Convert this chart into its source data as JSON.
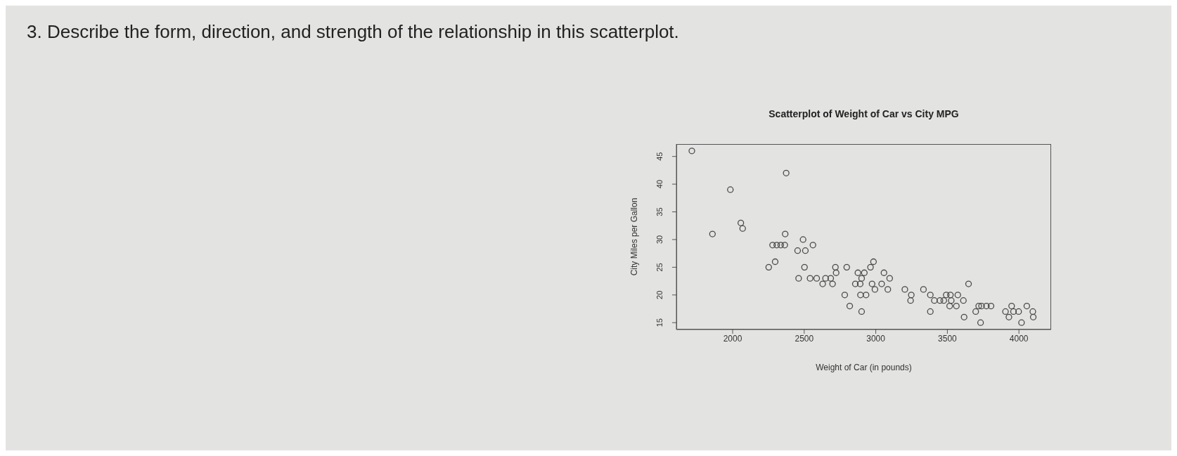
{
  "chart_data": {
    "type": "scatter",
    "title": "Scatterplot of Weight of Car vs City MPG",
    "xlabel": "Weight of Car (in pounds)",
    "ylabel": "City Miles per Gallon",
    "annotations": [
      "3. Describe the form, direction, and strength of the relationship in this scatterplot."
    ],
    "x": [
      1715,
      1859,
      1984,
      2057,
      2070,
      2252,
      2297,
      2279,
      2308,
      2336,
      2364,
      2367,
      2374,
      2454,
      2461,
      2492,
      2508,
      2502,
      2541,
      2561,
      2587,
      2629,
      2649,
      2685,
      2698,
      2718,
      2723,
      2783,
      2797,
      2818,
      2857,
      2875,
      2920,
      2901,
      2891,
      2893,
      2932,
      2901,
      2963,
      2984,
      2974,
      2994,
      3057,
      3041,
      3097,
      3084,
      3203,
      3248,
      3243,
      3333,
      3381,
      3381,
      3409,
      3448,
      3475,
      3492,
      3521,
      3527,
      3516,
      3563,
      3573,
      3612,
      3617,
      3648,
      3698,
      3719,
      3739,
      3732,
      3773,
      3805,
      3906,
      3949,
      3930,
      3962,
      3998,
      4018,
      4055,
      4097,
      4100
    ],
    "values": [
      46,
      31,
      39,
      33,
      32,
      25,
      26,
      29,
      29,
      29,
      29,
      31,
      42,
      28,
      23,
      30,
      28,
      25,
      23,
      29,
      23,
      22,
      23,
      23,
      22,
      25,
      24,
      20,
      25,
      18,
      22,
      24,
      24,
      23,
      22,
      20,
      20,
      17,
      25,
      26,
      22,
      21,
      24,
      22,
      23,
      21,
      21,
      20,
      19,
      21,
      20,
      17,
      19,
      19,
      19,
      20,
      20,
      19,
      18,
      18,
      20,
      19,
      16,
      22,
      17,
      18,
      18,
      15,
      18,
      18,
      17,
      18,
      16,
      17,
      17,
      15,
      18,
      17,
      16
    ],
    "color": "#4a4a4a",
    "marker": "circle",
    "grid": false,
    "xlim": [
      1607,
      4225
    ],
    "ylim": [
      13.76,
      47.24
    ],
    "xticks": [
      2000,
      2500,
      3000,
      3500,
      4000
    ],
    "yticks": [
      15,
      20,
      25,
      30,
      35,
      40,
      45
    ]
  }
}
